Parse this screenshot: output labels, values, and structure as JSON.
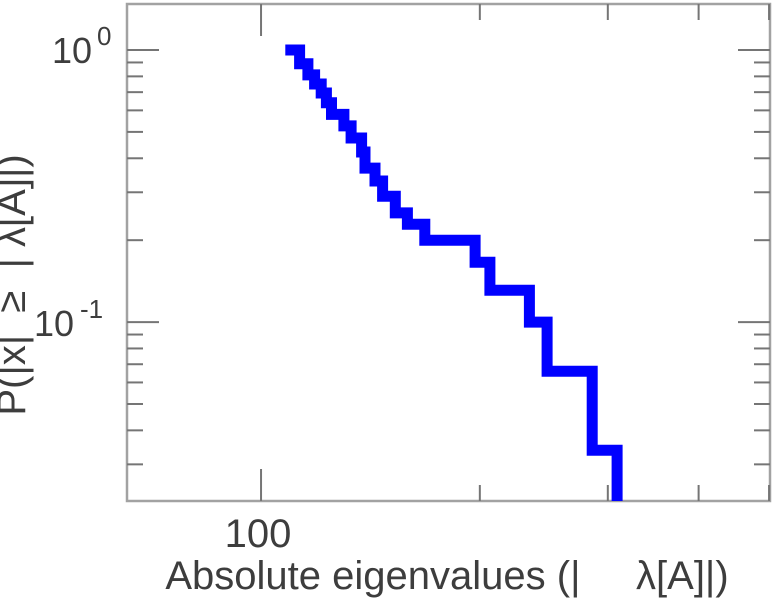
{
  "figure": {
    "background": "#ffffff",
    "text_color": "#3d3d3d"
  },
  "chart_data": {
    "type": "line",
    "line_style": "staircase-step (empirical complementary CDF)",
    "title": "",
    "xlabel": "Absolute eigenvalues (|     λ[A]|)",
    "ylabel": "P(|x|  ≥  | λ[A]|)",
    "x_scale": "log",
    "y_scale": "log",
    "x_range": [
      65.4,
      501.5
    ],
    "y_range": [
      0.022,
      1.476
    ],
    "grid": false,
    "legend": null,
    "x_ticks": {
      "major": [
        {
          "value": 100,
          "label": "100"
        }
      ],
      "minor": [
        200,
        300,
        400,
        500
      ]
    },
    "y_ticks": {
      "major": [
        {
          "value": 1,
          "mantissa": "10",
          "exponent": "0"
        },
        {
          "value": 0.1,
          "mantissa": "10",
          "exponent": "-1"
        }
      ],
      "minor": [
        0.9,
        0.8,
        0.7,
        0.6,
        0.5,
        0.4,
        0.3,
        0.2,
        0.09,
        0.08,
        0.07,
        0.06,
        0.05,
        0.04,
        0.03
      ]
    },
    "line_color": "#0000ff",
    "line_width": 11,
    "series": [
      {
        "name": "eigenvalue-ccdf",
        "note": "steps are [eigenvalue, P(|x| >= eigenvalue)]; each probability holds until the next eigenvalue; final point is the descent to the bottom axis",
        "steps": [
          [
            108,
            1.0
          ],
          [
            113,
            0.89
          ],
          [
            116,
            0.81
          ],
          [
            118.5,
            0.75
          ],
          [
            121,
            0.695
          ],
          [
            123,
            0.64
          ],
          [
            125,
            0.58
          ],
          [
            130,
            0.526
          ],
          [
            133,
            0.475
          ],
          [
            137.5,
            0.422
          ],
          [
            139,
            0.368
          ],
          [
            143.5,
            0.33
          ],
          [
            147,
            0.29
          ],
          [
            153,
            0.252
          ],
          [
            159,
            0.229
          ],
          [
            168,
            0.2
          ],
          [
            197,
            0.166
          ],
          [
            206.5,
            0.131
          ],
          [
            234,
            0.1
          ],
          [
            247.5,
            0.066
          ],
          [
            285.5,
            0.0338
          ],
          [
            309,
            0.022
          ]
        ]
      }
    ]
  }
}
